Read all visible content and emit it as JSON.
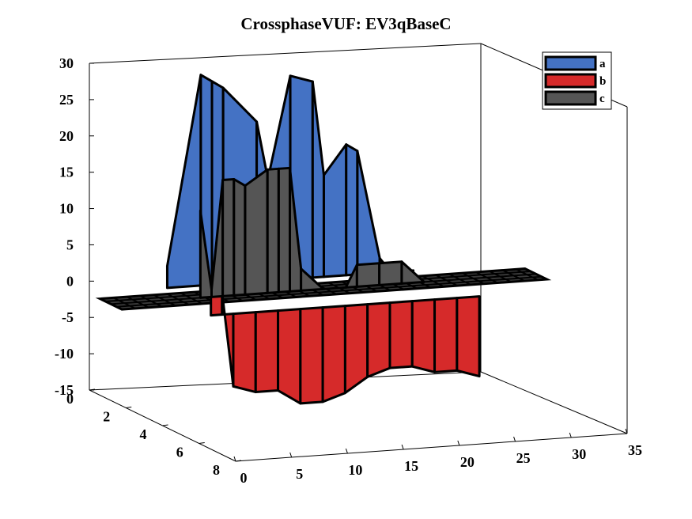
{
  "chart_data": {
    "type": "surface3d",
    "title": "CrossphaseVUF: EV3qBaseC",
    "xlabel": "",
    "ylabel": "",
    "zlabel": "",
    "xlim": [
      0,
      35
    ],
    "ylim": [
      0,
      8
    ],
    "zlim": [
      -15,
      30
    ],
    "x_ticks": [
      "0",
      "5",
      "10",
      "15",
      "20",
      "25",
      "30",
      "35"
    ],
    "y_ticks": [
      "0",
      "2",
      "4",
      "6",
      "8"
    ],
    "z_ticks": [
      "30",
      "25",
      "20",
      "15",
      "10",
      "5",
      "0",
      "-5",
      "-10",
      "-15"
    ],
    "legend_position": "top-right",
    "colors": {
      "a": "#4472c4",
      "b": "#d62a2a",
      "c": "#555555"
    },
    "series": [
      {
        "name": "a",
        "x": [
          5,
          8,
          9,
          10,
          13,
          14,
          16,
          18,
          19,
          21,
          22,
          24,
          25,
          26,
          27
        ],
        "peak_values": [
          3,
          29,
          28,
          27,
          22,
          14,
          28,
          27,
          14,
          18,
          17,
          2,
          0,
          0,
          0
        ]
      },
      {
        "name": "b",
        "x": [
          4,
          5,
          6,
          8,
          10,
          12,
          14,
          16,
          18,
          20,
          22,
          24,
          26,
          28
        ],
        "peak_values": [
          3,
          3,
          -10,
          -11,
          -11,
          -13,
          -13,
          -12,
          -10,
          -9,
          -9,
          -10,
          -10,
          -11
        ]
      },
      {
        "name": "c",
        "x": [
          6,
          7,
          8,
          9,
          10,
          12,
          13,
          14,
          15,
          17,
          19,
          20,
          22,
          24,
          26
        ],
        "peak_values": [
          12,
          1,
          16,
          16,
          15,
          17,
          17,
          17,
          3,
          0,
          0,
          3,
          3,
          3,
          0
        ]
      }
    ],
    "baseline_value": 0
  }
}
